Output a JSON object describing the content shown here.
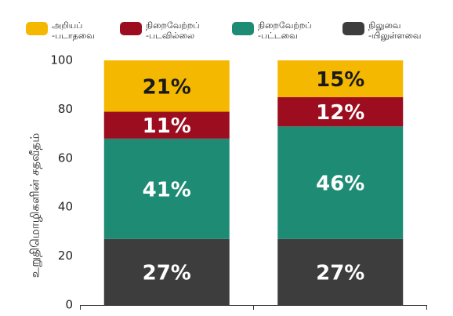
{
  "chart_data": {
    "type": "stacked_bar",
    "y_label": "உறுதிமொழிகளின் சதவீதம்",
    "categories": [
      null,
      null
    ],
    "series": [
      {
        "name": "அறியப் -படாதவை",
        "color": "#f5b800",
        "label_color": "#1a1a1a",
        "values": [
          21,
          15
        ],
        "value_labels": [
          "21%",
          "15%"
        ]
      },
      {
        "name": "நிறைவேற்றப் -படவில்லை",
        "color": "#9b0d1f",
        "label_color": "#ffffff",
        "values": [
          11,
          12
        ],
        "value_labels": [
          "11%",
          "12%"
        ]
      },
      {
        "name": "நிறைவேற்றப் -பட்டவை",
        "color": "#1e8c74",
        "label_color": "#ffffff",
        "values": [
          41,
          46
        ],
        "value_labels": [
          "41%",
          "46%"
        ]
      },
      {
        "name": "நிலுவை -யிலுள்ளவை",
        "color": "#3d3d3d",
        "label_color": "#ffffff",
        "values": [
          27,
          27
        ],
        "value_labels": [
          "27%",
          "27%"
        ]
      }
    ],
    "ylim": [
      0,
      100
    ],
    "yticks": [
      0,
      20,
      40,
      60,
      80,
      100
    ]
  }
}
